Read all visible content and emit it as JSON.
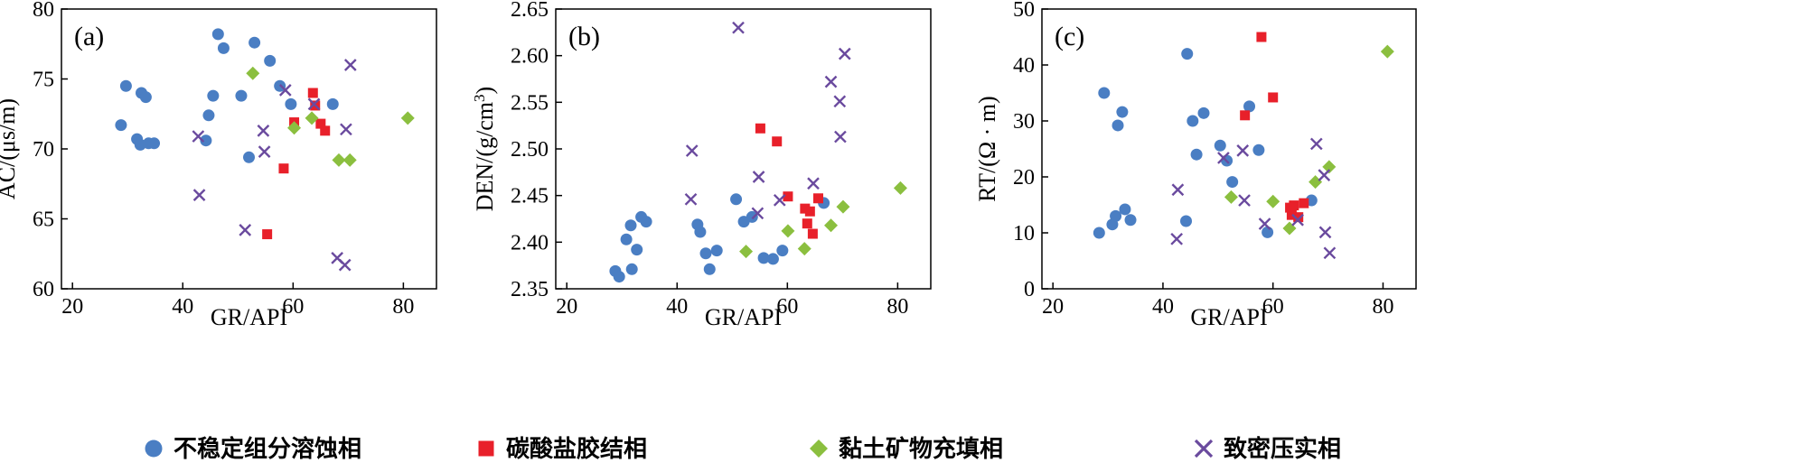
{
  "colors": {
    "unstable": "#4A7EC3",
    "carbonate": "#E8202A",
    "clay": "#8BBF3F",
    "compact": "#6A4A9E"
  },
  "legend": [
    {
      "label": "不稳定组分溶蚀相",
      "marker": "circle",
      "color_key": "unstable"
    },
    {
      "label": "碳酸盐胶结相",
      "marker": "square",
      "color_key": "carbonate"
    },
    {
      "label": "黏土矿物充填相",
      "marker": "diamond",
      "color_key": "clay"
    },
    {
      "label": "致密压实相",
      "marker": "cross",
      "color_key": "compact"
    }
  ],
  "chart_data": [
    {
      "type": "scatter",
      "panel_label": "(a)",
      "xlabel": "GR/API",
      "ylabel": "AC/(μs/m)",
      "xlim": [
        18,
        86
      ],
      "ylim": [
        60,
        80
      ],
      "xticks": [
        20,
        40,
        60,
        80
      ],
      "yticks": [
        60,
        65,
        70,
        75,
        80
      ],
      "series": [
        {
          "name": "不稳定组分溶蚀相",
          "points": [
            [
              28.8,
              71.7
            ],
            [
              29.7,
              74.5
            ],
            [
              31.7,
              70.7
            ],
            [
              32.3,
              70.3
            ],
            [
              32.5,
              74.0
            ],
            [
              33.3,
              73.7
            ],
            [
              33.8,
              70.4
            ],
            [
              34.8,
              70.4
            ],
            [
              44.2,
              70.6
            ],
            [
              44.7,
              72.4
            ],
            [
              45.5,
              73.8
            ],
            [
              46.4,
              78.2
            ],
            [
              47.4,
              77.2
            ],
            [
              50.6,
              73.8
            ],
            [
              52.0,
              69.4
            ],
            [
              53.0,
              77.6
            ],
            [
              55.8,
              76.3
            ],
            [
              57.6,
              74.5
            ],
            [
              59.6,
              73.2
            ],
            [
              67.2,
              73.2
            ]
          ]
        },
        {
          "name": "碳酸盐胶结相",
          "points": [
            [
              55.3,
              63.9
            ],
            [
              58.3,
              68.6
            ],
            [
              60.2,
              71.9
            ],
            [
              63.6,
              74.0
            ],
            [
              64.0,
              73.1
            ],
            [
              65.0,
              71.8
            ],
            [
              65.8,
              71.3
            ]
          ]
        },
        {
          "name": "黏土矿物充填相",
          "points": [
            [
              52.7,
              75.4
            ],
            [
              60.2,
              71.5
            ],
            [
              63.4,
              72.2
            ],
            [
              68.3,
              69.2
            ],
            [
              70.3,
              69.2
            ],
            [
              80.8,
              72.2
            ]
          ]
        },
        {
          "name": "致密压实相",
          "points": [
            [
              42.8,
              70.9
            ],
            [
              43.0,
              66.7
            ],
            [
              51.3,
              64.2
            ],
            [
              54.6,
              71.3
            ],
            [
              54.8,
              69.8
            ],
            [
              58.6,
              74.2
            ],
            [
              63.8,
              73.2
            ],
            [
              68.0,
              62.2
            ],
            [
              69.4,
              61.7
            ],
            [
              69.6,
              71.4
            ],
            [
              70.4,
              76.0
            ]
          ]
        }
      ]
    },
    {
      "type": "scatter",
      "panel_label": "(b)",
      "xlabel": "GR/API",
      "ylabel": "DEN/(g/cm",
      "ylabel_sup": "3",
      "ylabel_end": ")",
      "xlim": [
        18,
        86
      ],
      "ylim": [
        2.35,
        2.65
      ],
      "xticks": [
        20,
        40,
        60,
        80
      ],
      "yticks": [
        "2.35",
        "2.40",
        "2.45",
        "2.50",
        "2.55",
        "2.60",
        "2.65"
      ],
      "series": [
        {
          "name": "不稳定组分溶蚀相",
          "points": [
            [
              28.8,
              2.369
            ],
            [
              29.5,
              2.363
            ],
            [
              30.8,
              2.403
            ],
            [
              31.6,
              2.418
            ],
            [
              31.8,
              2.371
            ],
            [
              32.7,
              2.392
            ],
            [
              33.5,
              2.427
            ],
            [
              34.4,
              2.422
            ],
            [
              43.7,
              2.419
            ],
            [
              44.2,
              2.411
            ],
            [
              45.2,
              2.388
            ],
            [
              45.9,
              2.371
            ],
            [
              47.2,
              2.391
            ],
            [
              50.7,
              2.446
            ],
            [
              52.1,
              2.422
            ],
            [
              53.6,
              2.427
            ],
            [
              55.7,
              2.383
            ],
            [
              57.4,
              2.382
            ],
            [
              59.1,
              2.391
            ],
            [
              66.6,
              2.442
            ]
          ]
        },
        {
          "name": "碳酸盐胶结相",
          "points": [
            [
              55.1,
              2.522
            ],
            [
              58.1,
              2.508
            ],
            [
              60.1,
              2.449
            ],
            [
              63.2,
              2.436
            ],
            [
              63.6,
              2.42
            ],
            [
              64.1,
              2.433
            ],
            [
              64.6,
              2.409
            ],
            [
              65.6,
              2.447
            ]
          ]
        },
        {
          "name": "黏土矿物充填相",
          "points": [
            [
              52.5,
              2.39
            ],
            [
              60.1,
              2.412
            ],
            [
              63.1,
              2.393
            ],
            [
              67.9,
              2.418
            ],
            [
              70.1,
              2.438
            ],
            [
              80.5,
              2.458
            ]
          ]
        },
        {
          "name": "致密压实相",
          "points": [
            [
              42.5,
              2.446
            ],
            [
              42.7,
              2.498
            ],
            [
              51.1,
              2.63
            ],
            [
              54.6,
              2.431
            ],
            [
              54.8,
              2.47
            ],
            [
              58.6,
              2.445
            ],
            [
              64.7,
              2.463
            ],
            [
              67.9,
              2.572
            ],
            [
              69.5,
              2.551
            ],
            [
              69.6,
              2.513
            ],
            [
              70.4,
              2.602
            ]
          ]
        }
      ]
    },
    {
      "type": "scatter",
      "panel_label": "(c)",
      "xlabel": "GR/API",
      "ylabel": "RT/(Ω · m)",
      "xlim": [
        18,
        86
      ],
      "ylim": [
        0,
        50
      ],
      "xticks": [
        20,
        40,
        60,
        80
      ],
      "yticks": [
        0,
        10,
        20,
        30,
        40,
        50
      ],
      "series": [
        {
          "name": "不稳定组分溶蚀相",
          "points": [
            [
              28.4,
              10.0
            ],
            [
              29.3,
              35.0
            ],
            [
              30.8,
              11.5
            ],
            [
              31.4,
              13.0
            ],
            [
              31.8,
              29.2
            ],
            [
              32.6,
              31.6
            ],
            [
              33.1,
              14.2
            ],
            [
              34.1,
              12.3
            ],
            [
              44.2,
              12.1
            ],
            [
              44.4,
              42.0
            ],
            [
              45.4,
              30.0
            ],
            [
              46.1,
              24.0
            ],
            [
              47.4,
              31.4
            ],
            [
              50.4,
              25.6
            ],
            [
              51.6,
              22.9
            ],
            [
              52.6,
              19.1
            ],
            [
              55.7,
              32.6
            ],
            [
              57.4,
              24.8
            ],
            [
              59.0,
              10.1
            ],
            [
              67.0,
              15.8
            ]
          ]
        },
        {
          "name": "碳酸盐胶结相",
          "points": [
            [
              54.9,
              31.0
            ],
            [
              57.9,
              45.0
            ],
            [
              60.0,
              34.2
            ],
            [
              63.1,
              14.5
            ],
            [
              63.4,
              13.2
            ],
            [
              63.8,
              14.9
            ],
            [
              64.6,
              12.8
            ],
            [
              65.6,
              15.3
            ]
          ]
        },
        {
          "name": "黏土矿物充填相",
          "points": [
            [
              52.4,
              16.4
            ],
            [
              60.0,
              15.6
            ],
            [
              63.0,
              10.8
            ],
            [
              67.7,
              19.1
            ],
            [
              70.2,
              21.8
            ],
            [
              80.8,
              42.4
            ]
          ]
        },
        {
          "name": "致密压实相",
          "points": [
            [
              42.5,
              8.9
            ],
            [
              42.7,
              17.7
            ],
            [
              51.0,
              23.4
            ],
            [
              54.5,
              24.7
            ],
            [
              54.8,
              15.8
            ],
            [
              58.5,
              11.6
            ],
            [
              64.5,
              12.3
            ],
            [
              67.9,
              25.9
            ],
            [
              69.3,
              20.3
            ],
            [
              69.5,
              10.1
            ],
            [
              70.3,
              6.4
            ]
          ]
        }
      ]
    }
  ]
}
